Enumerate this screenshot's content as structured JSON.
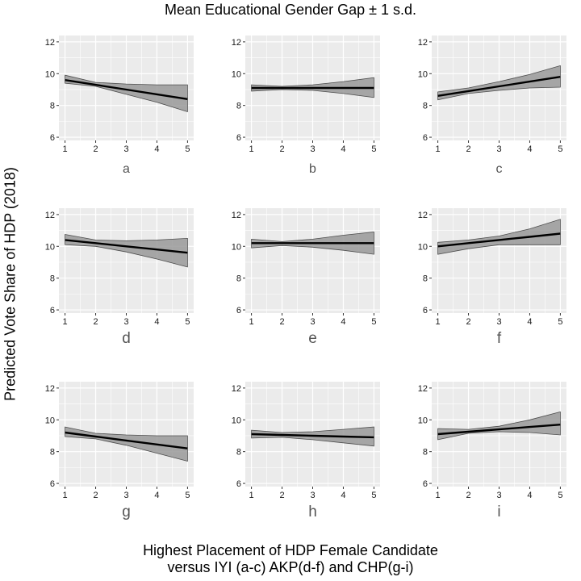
{
  "chart_data": {
    "type": "line",
    "title": "Mean Educational Gender Gap ± 1 s.d.",
    "ylabel": "Predicted Vote Share of HDP (2018)",
    "xlabel_lines": [
      "Highest Placement of HDP Female Candidate",
      "versus IYI (a-c) AKP(d-f) and CHP(g-i)"
    ],
    "x": [
      1,
      2,
      3,
      4,
      5
    ],
    "xticks": [
      "1",
      "2",
      "3",
      "4",
      "5"
    ],
    "grid": true,
    "rows": [
      {
        "ylim": [
          5.8,
          12.4
        ],
        "yticks": [
          6,
          8,
          10,
          12
        ]
      },
      {
        "ylim": [
          5.8,
          12.4
        ],
        "yticks": [
          6,
          8,
          10,
          12
        ]
      },
      {
        "ylim": [
          5.8,
          12.4
        ],
        "yticks": [
          6,
          8,
          10,
          12
        ]
      }
    ],
    "panels": [
      {
        "label": "a",
        "y": [
          9.6,
          9.3,
          9.0,
          8.7,
          8.4
        ],
        "lower": [
          9.4,
          9.2,
          8.7,
          8.2,
          7.6
        ],
        "upper": [
          9.9,
          9.45,
          9.35,
          9.3,
          9.3
        ]
      },
      {
        "label": "b",
        "y": [
          9.1,
          9.1,
          9.1,
          9.1,
          9.1
        ],
        "lower": [
          8.9,
          9.0,
          8.95,
          8.75,
          8.5
        ],
        "upper": [
          9.3,
          9.2,
          9.3,
          9.5,
          9.75
        ]
      },
      {
        "label": "c",
        "y": [
          8.6,
          8.9,
          9.2,
          9.5,
          9.8
        ],
        "lower": [
          8.35,
          8.75,
          8.95,
          9.1,
          9.15
        ],
        "upper": [
          8.85,
          9.1,
          9.5,
          9.95,
          10.5
        ]
      },
      {
        "label": "d",
        "y": [
          10.4,
          10.2,
          10.0,
          9.8,
          9.6
        ],
        "lower": [
          10.1,
          10.0,
          9.65,
          9.2,
          8.7
        ],
        "upper": [
          10.75,
          10.4,
          10.35,
          10.4,
          10.5
        ]
      },
      {
        "label": "e",
        "y": [
          10.2,
          10.2,
          10.2,
          10.2,
          10.2
        ],
        "lower": [
          9.9,
          10.05,
          9.95,
          9.75,
          9.5
        ],
        "upper": [
          10.45,
          10.3,
          10.45,
          10.7,
          10.9
        ]
      },
      {
        "label": "f",
        "y": [
          10.0,
          10.2,
          10.4,
          10.6,
          10.8
        ],
        "lower": [
          9.5,
          9.85,
          10.1,
          10.1,
          10.1
        ],
        "upper": [
          10.25,
          10.4,
          10.65,
          11.1,
          11.7
        ]
      },
      {
        "label": "g",
        "y": [
          9.2,
          8.95,
          8.7,
          8.45,
          8.2
        ],
        "lower": [
          8.95,
          8.8,
          8.4,
          7.9,
          7.4
        ],
        "upper": [
          9.55,
          9.15,
          9.05,
          9.0,
          9.0
        ]
      },
      {
        "label": "h",
        "y": [
          9.1,
          9.05,
          9.0,
          8.95,
          8.9
        ],
        "lower": [
          8.85,
          8.9,
          8.75,
          8.55,
          8.35
        ],
        "upper": [
          9.35,
          9.2,
          9.25,
          9.4,
          9.55
        ]
      },
      {
        "label": "i",
        "y": [
          9.1,
          9.25,
          9.4,
          9.55,
          9.7
        ],
        "lower": [
          8.75,
          9.15,
          9.25,
          9.2,
          9.05
        ],
        "upper": [
          9.45,
          9.4,
          9.6,
          10.0,
          10.5
        ]
      }
    ]
  },
  "colors": {
    "panel_bg": "#ebebeb",
    "grid": "#ffffff",
    "ribbon_fill": "#999999",
    "ribbon_stroke": "#4d4d4d",
    "line": "#000000",
    "tick_text": "#1a1a1a",
    "panel_label": "#555555"
  }
}
